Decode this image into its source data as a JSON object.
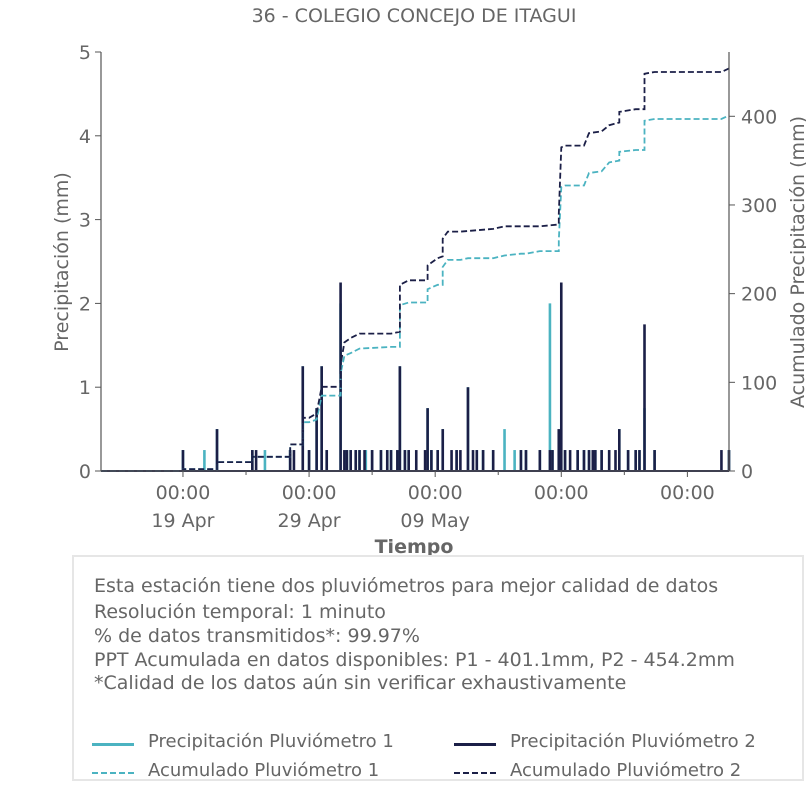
{
  "chart_data": {
    "type": "line",
    "title": "36 - COLEGIO CONCEJO DE ITAGUI",
    "xlabel": "Tiempo",
    "ylabel": "Precipitación (mm)",
    "y2label": "Acumulado Precipitación (mm)",
    "xlim_days": [
      -6.5,
      43.3
    ],
    "ylim": [
      0,
      5
    ],
    "y2lim": [
      0,
      472.5
    ],
    "x_ticks": [
      {
        "day": 0,
        "time": "00:00",
        "date": "19 Apr"
      },
      {
        "day": 10,
        "time": "00:00",
        "date": "29 Apr"
      },
      {
        "day": 20,
        "time": "00:00",
        "date": "09 May"
      },
      {
        "day": 30,
        "time": "00:00",
        "date": ""
      },
      {
        "day": 40,
        "time": "00:00",
        "date": ""
      }
    ],
    "y_ticks": [
      0,
      1,
      2,
      3,
      4,
      5
    ],
    "y2_ticks": [
      0,
      100,
      200,
      300,
      400
    ],
    "series": [
      {
        "name": "Precipitación Pluviómetro 1",
        "axis": "left",
        "color": "#4bb3c1",
        "style": "solid",
        "spikes": [
          [
            0.0,
            0.25
          ],
          [
            1.7,
            0.25
          ],
          [
            2.7,
            0.5
          ],
          [
            5.5,
            0.25
          ],
          [
            6.5,
            0.25
          ],
          [
            8.5,
            0.25
          ],
          [
            9.5,
            1.25
          ],
          [
            10.0,
            0.25
          ],
          [
            10.6,
            0.75
          ],
          [
            11.0,
            1.25
          ],
          [
            11.4,
            0.25
          ],
          [
            12.5,
            2.0
          ],
          [
            13.0,
            0.25
          ],
          [
            13.3,
            0.25
          ],
          [
            13.7,
            0.25
          ],
          [
            14.0,
            0.25
          ],
          [
            14.5,
            0.25
          ],
          [
            15.0,
            0.25
          ],
          [
            15.7,
            0.25
          ],
          [
            16.2,
            0.25
          ],
          [
            16.5,
            0.25
          ],
          [
            17.2,
            1.25
          ],
          [
            17.6,
            0.25
          ],
          [
            17.9,
            0.25
          ],
          [
            19.4,
            0.75
          ],
          [
            19.7,
            0.25
          ],
          [
            20.2,
            0.25
          ],
          [
            20.6,
            0.5
          ],
          [
            21.7,
            0.25
          ],
          [
            22.6,
            1.0
          ],
          [
            23.3,
            0.25
          ],
          [
            23.8,
            0.25
          ],
          [
            24.6,
            0.25
          ],
          [
            25.5,
            0.5
          ],
          [
            26.3,
            0.25
          ],
          [
            26.8,
            0.25
          ],
          [
            27.2,
            0.25
          ],
          [
            28.3,
            0.25
          ],
          [
            29.1,
            2.0
          ],
          [
            29.3,
            0.25
          ],
          [
            29.8,
            0.25
          ],
          [
            30.3,
            0.25
          ],
          [
            31.3,
            0.25
          ],
          [
            31.8,
            0.25
          ],
          [
            32.2,
            0.25
          ],
          [
            32.7,
            0.25
          ],
          [
            33.2,
            0.25
          ],
          [
            33.8,
            0.25
          ],
          [
            34.6,
            0.5
          ],
          [
            35.3,
            0.25
          ],
          [
            35.9,
            0.25
          ],
          [
            36.2,
            0.25
          ],
          [
            36.6,
            0.75
          ],
          [
            37.4,
            0.25
          ],
          [
            43.3,
            0.25
          ]
        ]
      },
      {
        "name": "Precipitación Pluviómetro 2",
        "axis": "left",
        "color": "#1b1f47",
        "style": "solid",
        "spikes": [
          [
            0.0,
            0.25
          ],
          [
            2.7,
            0.5
          ],
          [
            5.5,
            0.25
          ],
          [
            5.8,
            0.25
          ],
          [
            8.5,
            0.25
          ],
          [
            8.8,
            0.25
          ],
          [
            9.5,
            1.25
          ],
          [
            10.0,
            0.25
          ],
          [
            10.6,
            0.75
          ],
          [
            11.0,
            1.25
          ],
          [
            11.4,
            0.25
          ],
          [
            12.5,
            2.25
          ],
          [
            12.8,
            0.25
          ],
          [
            13.0,
            0.25
          ],
          [
            13.3,
            0.25
          ],
          [
            13.7,
            0.25
          ],
          [
            14.0,
            0.25
          ],
          [
            14.4,
            0.25
          ],
          [
            15.0,
            0.25
          ],
          [
            15.7,
            0.25
          ],
          [
            16.2,
            0.25
          ],
          [
            16.5,
            0.25
          ],
          [
            17.0,
            0.25
          ],
          [
            17.2,
            1.25
          ],
          [
            17.6,
            0.25
          ],
          [
            17.9,
            0.25
          ],
          [
            18.5,
            0.25
          ],
          [
            19.2,
            0.25
          ],
          [
            19.4,
            0.75
          ],
          [
            19.7,
            0.25
          ],
          [
            20.2,
            0.25
          ],
          [
            20.6,
            0.5
          ],
          [
            21.3,
            0.25
          ],
          [
            21.7,
            0.25
          ],
          [
            22.0,
            0.25
          ],
          [
            22.6,
            1.0
          ],
          [
            23.0,
            0.25
          ],
          [
            23.3,
            0.25
          ],
          [
            23.8,
            0.25
          ],
          [
            24.6,
            0.25
          ],
          [
            26.8,
            0.25
          ],
          [
            27.2,
            0.25
          ],
          [
            28.3,
            0.25
          ],
          [
            29.1,
            0.25
          ],
          [
            29.3,
            0.25
          ],
          [
            29.8,
            0.5
          ],
          [
            30.0,
            2.25
          ],
          [
            30.3,
            0.25
          ],
          [
            30.7,
            0.25
          ],
          [
            31.3,
            0.25
          ],
          [
            31.8,
            0.25
          ],
          [
            32.2,
            0.25
          ],
          [
            32.5,
            0.25
          ],
          [
            32.7,
            0.25
          ],
          [
            33.2,
            0.25
          ],
          [
            33.8,
            0.25
          ],
          [
            34.3,
            0.25
          ],
          [
            34.6,
            0.5
          ],
          [
            35.3,
            0.25
          ],
          [
            35.9,
            0.25
          ],
          [
            36.2,
            0.25
          ],
          [
            36.6,
            1.75
          ],
          [
            37.4,
            0.25
          ],
          [
            42.7,
            0.25
          ],
          [
            43.3,
            0.25
          ]
        ]
      },
      {
        "name": "Acumulado Pluviómetro 1",
        "axis": "right",
        "color": "#4bb3c1",
        "style": "dashed",
        "points": [
          [
            -6.5,
            0
          ],
          [
            0.0,
            0
          ],
          [
            0.0,
            2
          ],
          [
            2.7,
            2
          ],
          [
            2.7,
            10
          ],
          [
            5.5,
            10
          ],
          [
            5.5,
            16
          ],
          [
            8.5,
            16
          ],
          [
            8.5,
            30
          ],
          [
            9.5,
            30
          ],
          [
            9.5,
            55
          ],
          [
            10.0,
            55
          ],
          [
            10.6,
            58
          ],
          [
            11.0,
            85
          ],
          [
            12.5,
            85
          ],
          [
            12.5,
            110
          ],
          [
            12.8,
            130
          ],
          [
            13.3,
            133
          ],
          [
            14.0,
            138
          ],
          [
            16.5,
            140
          ],
          [
            17.2,
            140
          ],
          [
            17.2,
            187
          ],
          [
            17.9,
            190
          ],
          [
            19.4,
            190
          ],
          [
            19.4,
            205
          ],
          [
            20.2,
            210
          ],
          [
            20.6,
            210
          ],
          [
            20.6,
            230
          ],
          [
            21.0,
            238
          ],
          [
            22.0,
            238
          ],
          [
            22.6,
            240
          ],
          [
            23.3,
            240
          ],
          [
            24.6,
            240
          ],
          [
            25.5,
            243
          ],
          [
            26.8,
            245
          ],
          [
            27.2,
            245
          ],
          [
            28.3,
            248
          ],
          [
            29.8,
            248
          ],
          [
            29.8,
            260
          ],
          [
            30.0,
            320
          ],
          [
            30.3,
            322
          ],
          [
            31.8,
            322
          ],
          [
            32.2,
            336
          ],
          [
            33.2,
            338
          ],
          [
            33.8,
            348
          ],
          [
            34.6,
            350
          ],
          [
            34.6,
            360
          ],
          [
            35.9,
            362
          ],
          [
            36.6,
            362
          ],
          [
            36.6,
            395
          ],
          [
            37.4,
            397
          ],
          [
            42.7,
            397
          ],
          [
            43.3,
            401
          ]
        ]
      },
      {
        "name": "Acumulado Pluviómetro 2",
        "axis": "right",
        "color": "#1b1f47",
        "style": "dashed",
        "points": [
          [
            -6.5,
            0
          ],
          [
            0.0,
            0
          ],
          [
            0.0,
            2
          ],
          [
            2.7,
            2
          ],
          [
            2.7,
            10
          ],
          [
            5.5,
            10
          ],
          [
            5.5,
            16
          ],
          [
            8.5,
            16
          ],
          [
            8.5,
            30
          ],
          [
            9.5,
            30
          ],
          [
            9.5,
            60
          ],
          [
            10.0,
            60
          ],
          [
            10.6,
            65
          ],
          [
            11.0,
            95
          ],
          [
            12.5,
            95
          ],
          [
            12.5,
            120
          ],
          [
            12.8,
            145
          ],
          [
            13.3,
            150
          ],
          [
            14.0,
            155
          ],
          [
            16.5,
            155
          ],
          [
            17.2,
            157
          ],
          [
            17.2,
            210
          ],
          [
            17.9,
            215
          ],
          [
            19.4,
            215
          ],
          [
            19.4,
            232
          ],
          [
            20.2,
            240
          ],
          [
            20.6,
            242
          ],
          [
            20.6,
            262
          ],
          [
            21.0,
            270
          ],
          [
            22.0,
            270
          ],
          [
            24.6,
            273
          ],
          [
            25.5,
            276
          ],
          [
            26.8,
            276
          ],
          [
            28.3,
            276
          ],
          [
            29.8,
            278
          ],
          [
            29.8,
            290
          ],
          [
            30.0,
            365
          ],
          [
            30.3,
            367
          ],
          [
            31.8,
            367
          ],
          [
            32.2,
            381
          ],
          [
            33.2,
            383
          ],
          [
            33.8,
            390
          ],
          [
            34.6,
            393
          ],
          [
            34.6,
            405
          ],
          [
            35.9,
            408
          ],
          [
            36.6,
            408
          ],
          [
            36.6,
            448
          ],
          [
            37.4,
            450
          ],
          [
            42.7,
            450
          ],
          [
            43.3,
            454
          ]
        ]
      }
    ]
  },
  "info": {
    "lines": [
      "Esta estación tiene dos pluviómetros para mejor calidad de datos",
      "Resolución temporal: 1 minuto",
      "% de datos transmitidos*: 99.97%",
      "PPT Acumulada en datos disponibles: P1 - 401.1mm, P2 - 454.2mm",
      "*Calidad de los datos aún sin verificar exhaustivamente"
    ]
  },
  "legend": [
    {
      "label": "Precipitación Pluviómetro 1",
      "color": "#4bb3c1",
      "style": "solid"
    },
    {
      "label": "Precipitación Pluviómetro 2",
      "color": "#1b1f47",
      "style": "solid"
    },
    {
      "label": "Acumulado Pluviómetro 1",
      "color": "#4bb3c1",
      "style": "dashed"
    },
    {
      "label": "Acumulado Pluviómetro 2",
      "color": "#1b1f47",
      "style": "dashed"
    }
  ]
}
